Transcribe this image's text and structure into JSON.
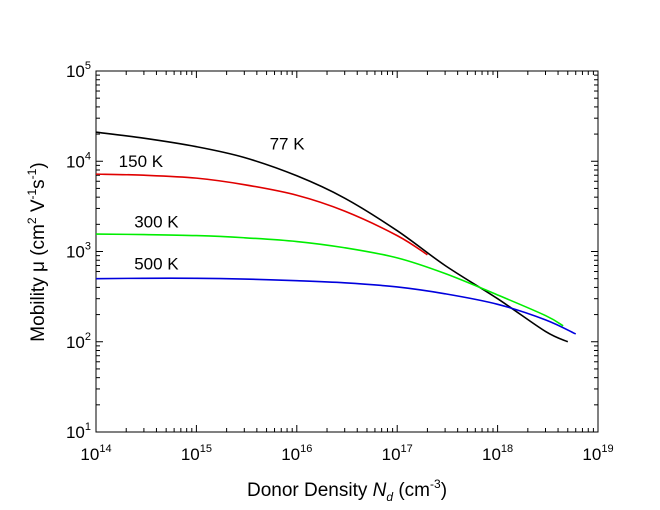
{
  "chart_data": {
    "type": "line",
    "title": "",
    "x_scale": "log",
    "y_scale": "log",
    "xlim": [
      100000000000000.0,
      1e+19
    ],
    "ylim": [
      10,
      100000
    ],
    "grid": false,
    "xlabel": {
      "main": "Donor Density ",
      "var": "N",
      "sub": "d",
      "unit": " (cm",
      "exp": "-3",
      "close": ")"
    },
    "ylabel": {
      "p1": "Mobility μ (cm",
      "e1": "2",
      "p2": " V",
      "e2": "-1",
      "p3": "s",
      "e3": "-1",
      "p4": ")"
    },
    "x_ticks": [
      {
        "value": 100000000000000.0,
        "base": "10",
        "exp": "14"
      },
      {
        "value": 1000000000000000.0,
        "base": "10",
        "exp": "15"
      },
      {
        "value": 1e+16,
        "base": "10",
        "exp": "16"
      },
      {
        "value": 1e+17,
        "base": "10",
        "exp": "17"
      },
      {
        "value": 1e+18,
        "base": "10",
        "exp": "18"
      },
      {
        "value": 1e+19,
        "base": "10",
        "exp": "19"
      }
    ],
    "y_ticks": [
      {
        "value": 10,
        "base": "10",
        "exp": "1"
      },
      {
        "value": 100,
        "base": "10",
        "exp": "2"
      },
      {
        "value": 1000,
        "base": "10",
        "exp": "3"
      },
      {
        "value": 10000,
        "base": "10",
        "exp": "4"
      },
      {
        "value": 100000,
        "base": "10",
        "exp": "5"
      }
    ],
    "series": [
      {
        "name": "77 K",
        "color": "#000000",
        "label_at": {
          "x": 8000000000000000.0,
          "y": 13500
        },
        "x": [
          100000000000000.0,
          300000000000000.0,
          1000000000000000.0,
          3000000000000000.0,
          1e+16,
          3e+16,
          1e+17,
          3e+17,
          1e+18,
          3e+18,
          5e+18
        ],
        "y": [
          21000,
          18000,
          14500,
          11000,
          6900,
          3900,
          1700,
          700,
          300,
          130,
          100
        ]
      },
      {
        "name": "150 K",
        "color": "#e00000",
        "label_at": {
          "x": 280000000000000.0,
          "y": 8600
        },
        "x": [
          100000000000000.0,
          300000000000000.0,
          1000000000000000.0,
          3000000000000000.0,
          1e+16,
          3e+16,
          1e+17,
          2e+17
        ],
        "y": [
          7200,
          7000,
          6500,
          5500,
          4200,
          2800,
          1500,
          920
        ]
      },
      {
        "name": "300 K",
        "color": "#00ee00",
        "label_at": {
          "x": 400000000000000.0,
          "y": 1850
        },
        "x": [
          100000000000000.0,
          300000000000000.0,
          1000000000000000.0,
          3000000000000000.0,
          1e+16,
          3e+16,
          1e+17,
          3e+17,
          1e+18,
          3e+18,
          4.5e+18
        ],
        "y": [
          1560,
          1540,
          1500,
          1420,
          1290,
          1100,
          850,
          570,
          330,
          195,
          150
        ]
      },
      {
        "name": "500 K",
        "color": "#0000dd",
        "label_at": {
          "x": 400000000000000.0,
          "y": 630
        },
        "x": [
          100000000000000.0,
          300000000000000.0,
          1000000000000000.0,
          3000000000000000.0,
          1e+16,
          3e+16,
          1e+17,
          3e+17,
          1e+18,
          3e+18,
          6e+18
        ],
        "y": [
          500,
          505,
          505,
          495,
          475,
          450,
          405,
          340,
          260,
          175,
          122
        ]
      }
    ]
  }
}
